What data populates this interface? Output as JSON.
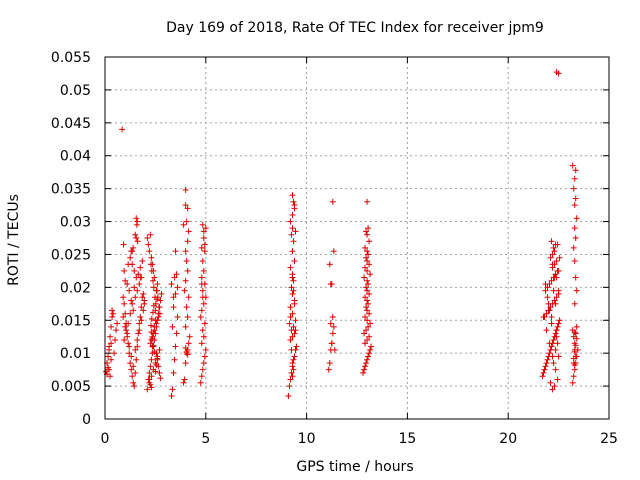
{
  "chart_data": {
    "type": "scatter",
    "title": "Day 169 of 2018, Rate Of TEC Index for receiver jpm9",
    "xlabel": "GPS time / hours",
    "ylabel": "ROTI / TECUs",
    "xlim": [
      0,
      25
    ],
    "ylim": [
      0,
      0.055
    ],
    "x_ticks": [
      "0",
      "5",
      "10",
      "15",
      "20",
      "25"
    ],
    "y_ticks": [
      "0",
      "0.005",
      "0.01",
      "0.015",
      "0.02",
      "0.025",
      "0.03",
      "0.035",
      "0.04",
      "0.045",
      "0.05",
      "0.055"
    ],
    "grid": true,
    "marker": "+",
    "color": "#e00000",
    "series": [
      {
        "name": "ROTI",
        "x": [
          0.05,
          0.1,
          0.15,
          0.2,
          0.25,
          0.3,
          0.35,
          0.4,
          0.1,
          0.2,
          0.3,
          0.45,
          0.5,
          0.55,
          0.6,
          0.2,
          0.3,
          0.25,
          0.15,
          0.35,
          0.85,
          0.9,
          0.95,
          1.0,
          1.05,
          1.1,
          1.15,
          1.2,
          1.25,
          1.3,
          1.35,
          1.4,
          1.45,
          1.5,
          1.55,
          1.6,
          1.65,
          1.7,
          1.75,
          1.8,
          1.85,
          1.9,
          1.95,
          0.9,
          1.0,
          1.1,
          1.2,
          1.3,
          1.4,
          1.5,
          1.6,
          1.7,
          1.8,
          1.9,
          1.95,
          0.95,
          1.05,
          1.15,
          1.25,
          1.35,
          1.45,
          1.55,
          1.65,
          1.75,
          1.85,
          1.3,
          1.4,
          1.5,
          1.6,
          1.55,
          1.58,
          1.62,
          0.92,
          1.25,
          1.35,
          1.45,
          1.0,
          1.1,
          1.2,
          1.3,
          1.4,
          1.5,
          1.6,
          1.7,
          1.8,
          0.95,
          1.15,
          1.35,
          1.55,
          1.75,
          2.1,
          2.15,
          2.2,
          2.25,
          2.3,
          2.35,
          2.4,
          2.45,
          2.5,
          2.55,
          2.6,
          2.65,
          2.7,
          2.75,
          2.8,
          2.2,
          2.3,
          2.4,
          2.5,
          2.6,
          2.7,
          2.25,
          2.35,
          2.45,
          2.55,
          2.65,
          2.5,
          2.52,
          2.48,
          2.55,
          2.6,
          2.45,
          2.4,
          2.35,
          2.3,
          2.2,
          2.15,
          2.1,
          2.25,
          2.28,
          2.32,
          2.38,
          2.42,
          2.58,
          2.62,
          2.68,
          2.72,
          2.5,
          2.45,
          2.4,
          2.3,
          2.35,
          2.55,
          2.6,
          2.65,
          2.7,
          2.2,
          2.25,
          2.3,
          2.75,
          2.5,
          2.55,
          2.6,
          2.45,
          2.4,
          2.35,
          2.3,
          2.28,
          2.32,
          2.38,
          2.42,
          2.58,
          3.3,
          3.35,
          3.4,
          3.45,
          3.5,
          3.55,
          3.6,
          3.4,
          3.5,
          3.3,
          3.45,
          3.55,
          3.6,
          3.5,
          3.4,
          3.35,
          3.9,
          3.95,
          4.0,
          4.05,
          4.1,
          4.15,
          4.2,
          4.0,
          4.1,
          4.05,
          4.15,
          3.95,
          4.0,
          4.1,
          4.05,
          4.0,
          4.1,
          4.15,
          3.9,
          4.05,
          4.0,
          4.1,
          4.0,
          4.05,
          4.1,
          4.0,
          4.75,
          4.8,
          4.85,
          4.9,
          4.95,
          5.0,
          4.8,
          4.9,
          4.85,
          4.95,
          4.75,
          4.8,
          4.9,
          5.0,
          4.85,
          4.95,
          4.8,
          4.9,
          4.85,
          4.95,
          4.8,
          4.9,
          5.0,
          4.85,
          4.9,
          4.95,
          4.8,
          4.85,
          9.1,
          9.15,
          9.2,
          9.25,
          9.3,
          9.35,
          9.4,
          9.45,
          9.5,
          9.2,
          9.3,
          9.4,
          9.25,
          9.35,
          9.15,
          9.45,
          9.3,
          9.2,
          9.4,
          9.3,
          9.25,
          9.35,
          9.3,
          9.2,
          9.4,
          9.3,
          9.35,
          9.25,
          9.3,
          9.2,
          9.3,
          9.4,
          9.35,
          9.3,
          9.4,
          9.45,
          9.2,
          9.25,
          9.3,
          9.35,
          9.3,
          9.4,
          9.35,
          9.3,
          9.45,
          11.1,
          11.15,
          11.2,
          11.25,
          11.3,
          11.35,
          11.2,
          11.3,
          11.25,
          11.15,
          11.35,
          11.2,
          11.3,
          11.25,
          11.4,
          12.8,
          12.85,
          12.9,
          12.95,
          13.0,
          13.05,
          13.1,
          13.15,
          13.2,
          12.9,
          13.0,
          13.1,
          12.85,
          12.95,
          13.05,
          13.15,
          13.0,
          12.9,
          13.1,
          13.0,
          12.95,
          13.05,
          13.0,
          12.9,
          13.1,
          13.0,
          12.95,
          13.05,
          13.0,
          12.85,
          13.15,
          13.0,
          12.9,
          13.1,
          13.0,
          12.95,
          13.05,
          13.0,
          12.9,
          13.1,
          13.0,
          12.95,
          13.05,
          13.0,
          21.7,
          21.75,
          21.8,
          21.85,
          21.9,
          21.95,
          22.0,
          22.05,
          22.1,
          22.15,
          22.2,
          22.25,
          22.3,
          22.35,
          22.4,
          22.45,
          22.5,
          22.55,
          21.8,
          21.9,
          22.0,
          22.1,
          22.2,
          22.3,
          22.4,
          22.5,
          21.85,
          21.95,
          22.05,
          22.15,
          22.25,
          22.35,
          22.45,
          22.2,
          22.3,
          22.4,
          22.1,
          22.2,
          22.3,
          22.25,
          22.35,
          22.15,
          22.4,
          22.5,
          22.0,
          21.75,
          21.9,
          22.05,
          22.2,
          22.35,
          22.45,
          22.1,
          22.3,
          22.2,
          22.25,
          22.35,
          22.4,
          22.15,
          22.05,
          21.95,
          21.85,
          22.5,
          22.55,
          22.45,
          22.2,
          22.3,
          22.25,
          22.35,
          22.15,
          22.4,
          22.45,
          22.5,
          22.4,
          22.5,
          23.2,
          23.25,
          23.3,
          23.35,
          23.4,
          23.45,
          23.3,
          23.25,
          23.35,
          23.2,
          23.4,
          23.3,
          23.35,
          23.25,
          23.3,
          23.4,
          23.35,
          23.3,
          23.25,
          23.35,
          23.3,
          23.4,
          23.3,
          23.35,
          23.25,
          23.3,
          23.35,
          23.2,
          23.3,
          23.4,
          23.35,
          23.3,
          23.25,
          23.3
        ],
        "y": [
          0.0072,
          0.0085,
          0.0095,
          0.011,
          0.0125,
          0.014,
          0.0155,
          0.016,
          0.0068,
          0.0075,
          0.009,
          0.01,
          0.012,
          0.0135,
          0.0145,
          0.0105,
          0.0115,
          0.0065,
          0.0078,
          0.0165,
          0.044,
          0.0185,
          0.0175,
          0.016,
          0.0145,
          0.013,
          0.0115,
          0.01,
          0.0085,
          0.0075,
          0.0065,
          0.0055,
          0.005,
          0.007,
          0.009,
          0.011,
          0.013,
          0.0145,
          0.0155,
          0.017,
          0.0185,
          0.019,
          0.0175,
          0.0155,
          0.014,
          0.0125,
          0.011,
          0.0095,
          0.008,
          0.0105,
          0.012,
          0.0135,
          0.015,
          0.0165,
          0.018,
          0.012,
          0.0135,
          0.0145,
          0.016,
          0.0175,
          0.02,
          0.0215,
          0.022,
          0.023,
          0.024,
          0.0255,
          0.026,
          0.028,
          0.03,
          0.0305,
          0.0295,
          0.027,
          0.0265,
          0.0245,
          0.0235,
          0.0225,
          0.021,
          0.0205,
          0.0195,
          0.018,
          0.0165,
          0.0185,
          0.0195,
          0.0205,
          0.0215,
          0.0225,
          0.0235,
          0.0255,
          0.0275,
          0.0215,
          0.0045,
          0.006,
          0.007,
          0.008,
          0.009,
          0.01,
          0.011,
          0.012,
          0.013,
          0.014,
          0.015,
          0.016,
          0.017,
          0.018,
          0.019,
          0.0055,
          0.0065,
          0.0075,
          0.0085,
          0.0095,
          0.0105,
          0.0115,
          0.0125,
          0.0135,
          0.0145,
          0.0155,
          0.0165,
          0.0175,
          0.0185,
          0.0195,
          0.0205,
          0.0215,
          0.0225,
          0.0235,
          0.0245,
          0.0255,
          0.0265,
          0.0275,
          0.028,
          0.0235,
          0.0225,
          0.021,
          0.02,
          0.0195,
          0.0185,
          0.017,
          0.016,
          0.015,
          0.014,
          0.013,
          0.012,
          0.011,
          0.01,
          0.009,
          0.008,
          0.007,
          0.006,
          0.0052,
          0.0048,
          0.0062,
          0.0072,
          0.0082,
          0.0092,
          0.0102,
          0.0112,
          0.0122,
          0.0132,
          0.0142,
          0.0152,
          0.0162,
          0.0172,
          0.0182,
          0.0035,
          0.0045,
          0.007,
          0.009,
          0.011,
          0.013,
          0.0155,
          0.017,
          0.019,
          0.0205,
          0.0215,
          0.022,
          0.02,
          0.0255,
          0.0185,
          0.014,
          0.0055,
          0.006,
          0.0085,
          0.01,
          0.0105,
          0.0115,
          0.0125,
          0.014,
          0.0155,
          0.017,
          0.0185,
          0.0195,
          0.021,
          0.0225,
          0.024,
          0.0255,
          0.027,
          0.0285,
          0.0295,
          0.03,
          0.0325,
          0.032,
          0.0348,
          0.0102,
          0.0098,
          0.0108,
          0.0055,
          0.0065,
          0.0075,
          0.0085,
          0.0095,
          0.0105,
          0.0115,
          0.0125,
          0.0135,
          0.0145,
          0.0155,
          0.0165,
          0.0175,
          0.0185,
          0.0195,
          0.0205,
          0.0215,
          0.0225,
          0.024,
          0.0255,
          0.026,
          0.0275,
          0.029,
          0.0295,
          0.0285,
          0.0265,
          0.0205,
          0.0185,
          0.0035,
          0.005,
          0.006,
          0.007,
          0.008,
          0.009,
          0.0095,
          0.0105,
          0.011,
          0.012,
          0.0125,
          0.013,
          0.0135,
          0.014,
          0.0145,
          0.015,
          0.016,
          0.017,
          0.018,
          0.019,
          0.02,
          0.021,
          0.022,
          0.023,
          0.024,
          0.0255,
          0.027,
          0.028,
          0.029,
          0.03,
          0.031,
          0.032,
          0.033,
          0.034,
          0.0325,
          0.0285,
          0.0155,
          0.0105,
          0.0085,
          0.0075,
          0.0065,
          0.0175,
          0.0195,
          0.0215,
          0.0135,
          0.0075,
          0.0085,
          0.0105,
          0.0115,
          0.013,
          0.014,
          0.0145,
          0.0155,
          0.0205,
          0.0235,
          0.0255,
          0.0205,
          0.033,
          0.0115,
          0.0105,
          0.007,
          0.0075,
          0.008,
          0.0085,
          0.009,
          0.0095,
          0.01,
          0.0105,
          0.011,
          0.0115,
          0.012,
          0.0125,
          0.013,
          0.0135,
          0.014,
          0.0145,
          0.015,
          0.0155,
          0.016,
          0.0165,
          0.017,
          0.0175,
          0.018,
          0.0185,
          0.019,
          0.0195,
          0.02,
          0.0205,
          0.021,
          0.0215,
          0.022,
          0.0225,
          0.023,
          0.0235,
          0.024,
          0.0245,
          0.025,
          0.0255,
          0.026,
          0.027,
          0.028,
          0.0285,
          0.029,
          0.033,
          0.0065,
          0.007,
          0.0075,
          0.008,
          0.0085,
          0.009,
          0.0095,
          0.01,
          0.0105,
          0.011,
          0.0115,
          0.012,
          0.0125,
          0.013,
          0.0135,
          0.014,
          0.0145,
          0.015,
          0.0155,
          0.016,
          0.0165,
          0.017,
          0.0175,
          0.018,
          0.0185,
          0.019,
          0.0195,
          0.02,
          0.0205,
          0.021,
          0.0215,
          0.022,
          0.0225,
          0.023,
          0.0235,
          0.024,
          0.0245,
          0.025,
          0.0255,
          0.026,
          0.0265,
          0.027,
          0.0215,
          0.0195,
          0.0175,
          0.0155,
          0.0135,
          0.0115,
          0.0095,
          0.0075,
          0.006,
          0.0055,
          0.005,
          0.0045,
          0.0085,
          0.0105,
          0.0125,
          0.0145,
          0.0165,
          0.0185,
          0.0205,
          0.0225,
          0.0245,
          0.0265,
          0.0235,
          0.0215,
          0.0195,
          0.0175,
          0.0155,
          0.0135,
          0.0115,
          0.0095,
          0.0527,
          0.0525,
          0.0055,
          0.0065,
          0.0075,
          0.0085,
          0.0095,
          0.0105,
          0.0115,
          0.0125,
          0.013,
          0.0135,
          0.014,
          0.0105,
          0.0095,
          0.0085,
          0.0175,
          0.0195,
          0.0215,
          0.024,
          0.026,
          0.0275,
          0.029,
          0.0305,
          0.0325,
          0.0335,
          0.035,
          0.0365,
          0.0378,
          0.0385,
          0.0132,
          0.0122,
          0.0112,
          0.0102,
          0.0092,
          0.0082
        ]
      }
    ]
  }
}
